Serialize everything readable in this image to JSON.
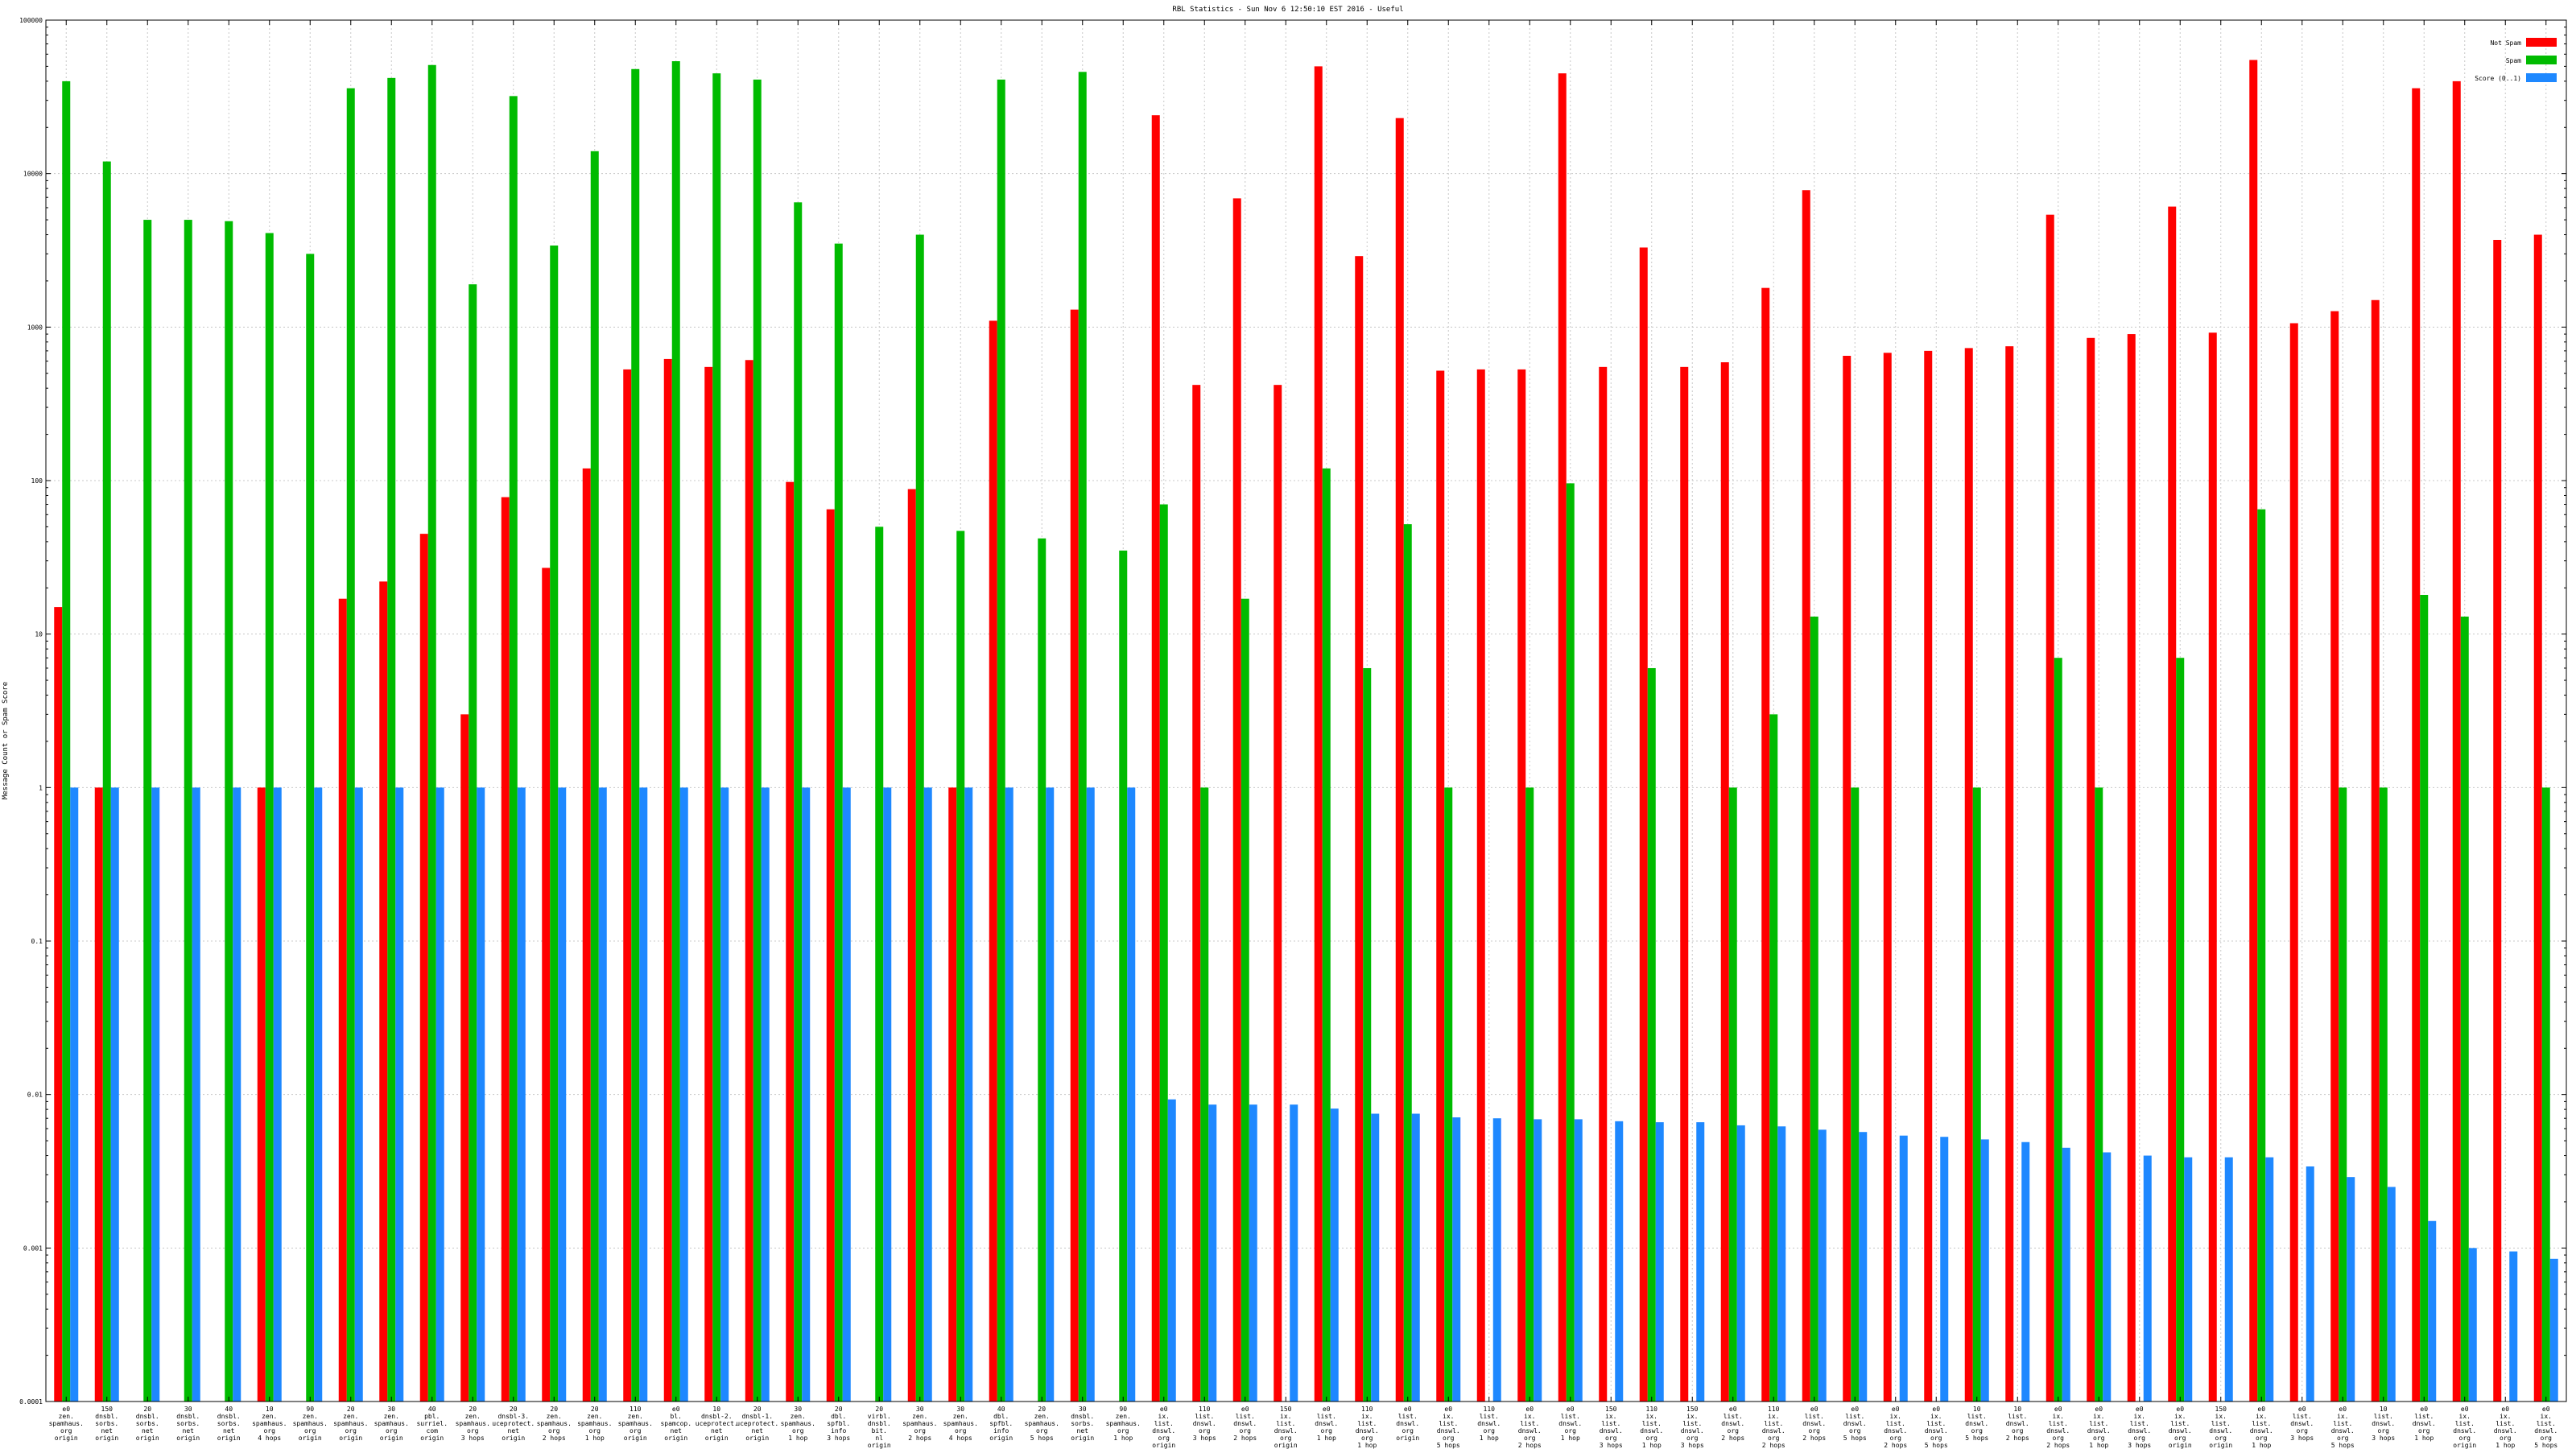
{
  "chart_data": {
    "type": "bar",
    "title": "RBL Statistics - Sun Nov  6 12:50:10 EST 2016 - Useful",
    "xlabel": "",
    "ylabel": "Message Count or Spam Score",
    "yscale": "log",
    "ylim": [
      0.0001,
      100000
    ],
    "yticks": [
      "0.0001",
      "0.001",
      "0.01",
      "0.1",
      "1",
      "10",
      "100",
      "1000",
      "10000",
      "100000"
    ],
    "grid": true,
    "legend_position": "top-right",
    "categories": [
      "e0|zen.|spamhaus.|org|origin",
      "150|dnsbl.|sorbs.|net|origin",
      "20|dnsbl.|sorbs.|net|origin",
      "30|dnsbl.|sorbs.|net|origin",
      "40|dnsbl.|sorbs.|net|origin",
      "10|zen.|spamhaus.|org|4 hops",
      "90|zen.|spamhaus.|org|origin",
      "20|zen.|spamhaus.|org|origin",
      "30|zen.|spamhaus.|org|origin",
      "40|pbl.|surriel.|com|origin",
      "20|zen.|spamhaus.|org|3 hops",
      "20|dnsbl-3.|uceprotect.|net|origin",
      "20|zen.|spamhaus.|org|2 hops",
      "20|zen.|spamhaus.|org|1 hop",
      "110|zen.|spamhaus.|org|origin",
      "e0|bl.|spamcop.|net|origin",
      "10|dnsbl-2.|uceprotect.|net|origin",
      "20|dnsbl-1.|uceprotect.|net|origin",
      "30|zen.|spamhaus.|org|1 hop",
      "20|dbl.|spfbl.|info|3 hops",
      "20|virbl.|dnsbl.|bit.|nl|origin",
      "30|zen.|spamhaus.|org|2 hops",
      "30|zen.|spamhaus.|org|4 hops",
      "40|dbl.|spfbl.|info|origin",
      "20|zen.|spamhaus.|org|5 hops",
      "30|dnsbl.|sorbs.|net|origin",
      "90|zen.|spamhaus.|org|1 hop",
      "e0|ix.|list.|dnswl.|org|origin",
      "110|list.|dnswl.|org|3 hops",
      "e0|list.|dnswl.|org|2 hops",
      "150|ix.|list.|dnswl.|org|origin",
      "e0|list.|dnswl.|org|1 hop",
      "110|ix.|list.|dnswl.|org|1 hop",
      "e0|list.|dnswl.|org|origin",
      "e0|ix.|list.|dnswl.|org|5 hops",
      "110|list.|dnswl.|org|1 hop",
      "e0|ix.|list.|dnswl.|org|2 hops",
      "e0|list.|dnswl.|org|1 hop",
      "150|ix.|list.|dnswl.|org|3 hops",
      "110|ix.|list.|dnswl.|org|1 hop",
      "150|ix.|list.|dnswl.|org|3 hops",
      "e0|list.|dnswl.|org|2 hops",
      "110|ix.|list.|dnswl.|org|2 hops",
      "e0|list.|dnswl.|org|2 hops",
      "e0|list.|dnswl.|org|5 hops",
      "e0|ix.|list.|dnswl.|org|2 hops",
      "e0|ix.|list.|dnswl.|org|5 hops",
      "10|list.|dnswl.|org|5 hops",
      "10|list.|dnswl.|org|2 hops",
      "e0|ix.|list.|dnswl.|org|2 hops",
      "e0|ix.|list.|dnswl.|org|1 hop",
      "e0|ix.|list.|dnswl.|org|3 hops",
      "e0|ix.|list.|dnswl.|org|origin",
      "150|ix.|list.|dnswl.|org|origin",
      "e0|ix.|list.|dnswl.|org|1 hop",
      "e0|list.|dnswl.|org|3 hops",
      "e0|ix.|list.|dnswl.|org|5 hops",
      "10|list.|dnswl.|org|3 hops",
      "e0|list.|dnswl.|org|1 hop",
      "e0|ix.|list.|dnswl.|org|origin",
      "e0|ix.|list.|dnswl.|org|1 hop",
      "e0|ix.|list.|dnswl.|org|5 hops"
    ],
    "series": [
      {
        "name": "Not Spam",
        "color": "#ff0000",
        "values": [
          15,
          1,
          0,
          0,
          0,
          1,
          0,
          17,
          22,
          45,
          3,
          78,
          27,
          120,
          530,
          620,
          550,
          610,
          98,
          65,
          0,
          88,
          1,
          1100,
          0,
          1300,
          0,
          24000,
          420,
          6900,
          420,
          50000,
          2900,
          23000,
          520,
          530,
          530,
          45000,
          550,
          3300,
          550,
          590,
          1800,
          7800,
          650,
          680,
          700,
          730,
          750,
          5400,
          850,
          900,
          6100,
          920,
          55000,
          1060,
          1270,
          1500,
          36000,
          40000,
          3700,
          4000
        ]
      },
      {
        "name": "Spam",
        "color": "#00bb00",
        "values": [
          40000,
          12000,
          5000,
          5000,
          4900,
          4100,
          3000,
          36000,
          42000,
          51000,
          1900,
          32000,
          3400,
          14000,
          48000,
          54000,
          45000,
          41000,
          6500,
          3500,
          50,
          4000,
          47,
          41000,
          42,
          46000,
          35,
          70,
          1,
          17,
          0,
          120,
          6,
          52,
          1,
          0,
          1,
          96,
          0,
          6,
          0,
          1,
          3,
          13,
          1,
          0,
          0,
          1,
          0,
          7,
          1,
          0,
          7,
          0,
          65,
          0,
          1,
          1,
          18,
          13,
          0,
          1
        ]
      },
      {
        "name": "Score (0..1)",
        "color": "#1e88ff",
        "values": [
          1,
          1,
          1,
          1,
          1,
          1,
          1,
          1,
          1,
          1,
          1,
          1,
          1,
          1,
          1,
          1,
          1,
          1,
          1,
          1,
          1,
          1,
          1,
          1,
          1,
          1,
          1,
          0.0093,
          0.0086,
          0.0086,
          0.0086,
          0.0081,
          0.0075,
          0.0075,
          0.0071,
          0.007,
          0.0069,
          0.0069,
          0.0067,
          0.0066,
          0.0066,
          0.0063,
          0.0062,
          0.0059,
          0.0057,
          0.0054,
          0.0053,
          0.0051,
          0.0049,
          0.0045,
          0.0042,
          0.004,
          0.0039,
          0.0039,
          0.0039,
          0.0034,
          0.0029,
          0.0025,
          0.0015,
          0.001,
          0.00095,
          0.00085
        ]
      }
    ]
  }
}
